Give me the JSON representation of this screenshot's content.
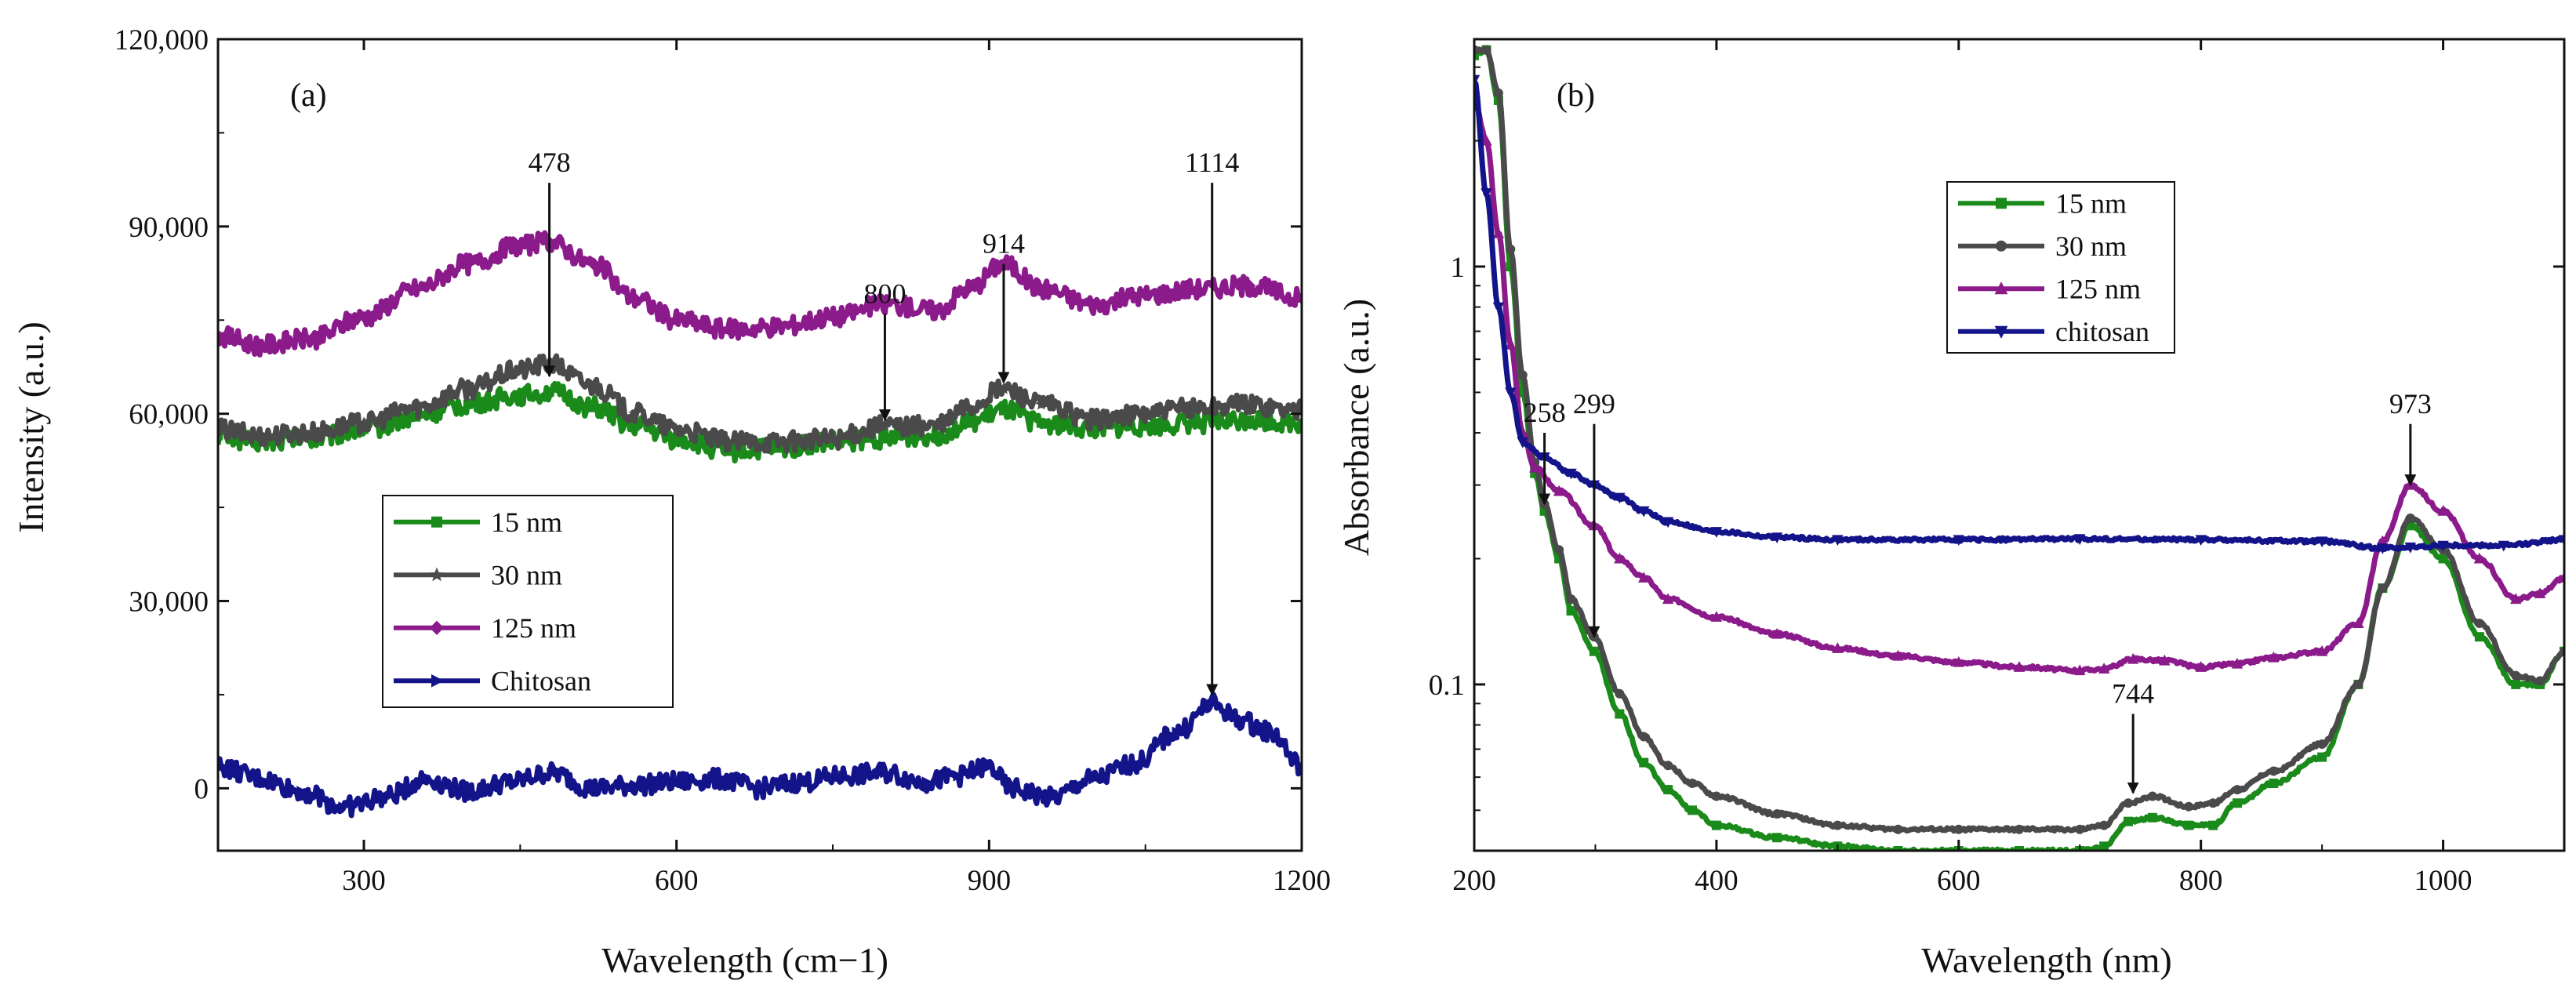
{
  "chart_data": [
    {
      "panel_label": "(a)",
      "type": "line",
      "xlabel": "Wavelength (cm−1)",
      "ylabel": "Intensity (a.u.)",
      "xlim": [
        160,
        1200
      ],
      "ylim": [
        -10000,
        120000
      ],
      "xticks": [
        300,
        600,
        900,
        1200
      ],
      "yticks": [
        0,
        30000,
        60000,
        90000,
        120000
      ],
      "ytick_labels": [
        "0",
        "30,000",
        "60,000",
        "90,000",
        "120,000"
      ],
      "legend_position": "lower-left",
      "series": [
        {
          "name": "15 nm",
          "color": "#1a8a1a",
          "marker": "square",
          "x": [
            160,
            200,
            250,
            300,
            350,
            400,
            450,
            478,
            520,
            560,
            600,
            650,
            700,
            750,
            800,
            850,
            880,
            914,
            950,
            1000,
            1050,
            1100,
            1150,
            1200
          ],
          "y": [
            56500,
            55500,
            56000,
            57500,
            59500,
            61500,
            63000,
            63500,
            61000,
            58000,
            56000,
            54000,
            54500,
            55500,
            56000,
            56500,
            58500,
            60500,
            58500,
            57500,
            58000,
            58500,
            59000,
            58500
          ]
        },
        {
          "name": "30 nm",
          "color": "#4a4a4a",
          "marker": "star",
          "x": [
            160,
            200,
            250,
            300,
            350,
            400,
            450,
            478,
            520,
            560,
            600,
            650,
            700,
            750,
            800,
            850,
            880,
            914,
            950,
            1000,
            1050,
            1100,
            1150,
            1200
          ],
          "y": [
            57500,
            56500,
            57000,
            58500,
            61000,
            64000,
            67000,
            68000,
            64500,
            60000,
            57500,
            55500,
            55500,
            56000,
            58000,
            58000,
            61000,
            64000,
            61500,
            59000,
            60000,
            61000,
            61500,
            60500
          ]
        },
        {
          "name": "125 nm",
          "color": "#8b1a8b",
          "marker": "diamond",
          "x": [
            160,
            200,
            250,
            300,
            350,
            400,
            450,
            478,
            520,
            560,
            600,
            650,
            700,
            750,
            800,
            850,
            880,
            914,
            950,
            1000,
            1050,
            1100,
            1150,
            1200
          ],
          "y": [
            72500,
            71000,
            72000,
            75500,
            80000,
            84000,
            87000,
            87500,
            84000,
            78500,
            75000,
            73500,
            74000,
            75500,
            77500,
            76500,
            80000,
            84000,
            80000,
            77500,
            79000,
            80000,
            80500,
            78500
          ]
        },
        {
          "name": "Chitosan",
          "color": "#14148a",
          "marker": "triangle-right",
          "x": [
            160,
            200,
            240,
            280,
            320,
            360,
            400,
            440,
            480,
            520,
            560,
            600,
            640,
            680,
            720,
            760,
            800,
            840,
            870,
            900,
            920,
            960,
            1000,
            1040,
            1080,
            1114,
            1140,
            1170,
            1200
          ],
          "y": [
            3500,
            1500,
            -500,
            -3000,
            -1500,
            1500,
            -500,
            1000,
            2500,
            0,
            500,
            1000,
            1500,
            0,
            1000,
            2000,
            2500,
            1000,
            2000,
            3500,
            0,
            -1500,
            1500,
            4000,
            9000,
            13500,
            11000,
            9000,
            3500
          ]
        }
      ],
      "annotations": [
        {
          "label": "478",
          "x": 478,
          "y_from": 97000,
          "y_to": 66000,
          "series": "30 nm"
        },
        {
          "label": "800",
          "x": 800,
          "y_from": 76000,
          "y_to": 59000,
          "series": "30 nm"
        },
        {
          "label": "914",
          "x": 914,
          "y_from": 84000,
          "y_to": 65000,
          "series": "30 nm"
        },
        {
          "label": "1114",
          "x": 1114,
          "y_from": 97000,
          "y_to": 15000,
          "series": "Chitosan"
        }
      ]
    },
    {
      "panel_label": "(b)",
      "type": "line",
      "yscale": "log",
      "xlabel": "Wavelength (nm)",
      "ylabel": "Absorbance (a.u.)",
      "xlim": [
        200,
        1100
      ],
      "ylim": [
        0.04,
        3.5
      ],
      "xticks": [
        200,
        400,
        600,
        800,
        1000
      ],
      "yticks": [
        0.1,
        1
      ],
      "ytick_labels": [
        "0.1",
        "1"
      ],
      "legend_position": "top-center",
      "series": [
        {
          "name": "15 nm",
          "color": "#1a8a1a",
          "marker": "square",
          "x": [
            200,
            210,
            220,
            230,
            240,
            250,
            258,
            270,
            280,
            299,
            320,
            340,
            360,
            380,
            400,
            450,
            500,
            550,
            600,
            650,
            700,
            720,
            740,
            760,
            790,
            810,
            830,
            860,
            900,
            930,
            950,
            973,
            1000,
            1030,
            1060,
            1080,
            1100
          ],
          "y": [
            3.2,
            3.3,
            2.5,
            1.0,
            0.5,
            0.32,
            0.26,
            0.2,
            0.15,
            0.12,
            0.085,
            0.065,
            0.056,
            0.05,
            0.046,
            0.043,
            0.041,
            0.04,
            0.04,
            0.04,
            0.04,
            0.041,
            0.047,
            0.048,
            0.046,
            0.046,
            0.052,
            0.058,
            0.067,
            0.1,
            0.17,
            0.24,
            0.2,
            0.13,
            0.1,
            0.1,
            0.12
          ]
        },
        {
          "name": "30 nm",
          "color": "#4a4a4a",
          "marker": "circle",
          "x": [
            200,
            210,
            220,
            230,
            240,
            250,
            258,
            270,
            280,
            299,
            320,
            340,
            360,
            380,
            400,
            450,
            500,
            550,
            600,
            650,
            700,
            720,
            740,
            760,
            790,
            810,
            830,
            860,
            900,
            930,
            950,
            973,
            1000,
            1030,
            1060,
            1080,
            1100
          ],
          "y": [
            3.3,
            3.3,
            2.6,
            1.1,
            0.55,
            0.34,
            0.27,
            0.21,
            0.16,
            0.13,
            0.095,
            0.075,
            0.064,
            0.058,
            0.054,
            0.049,
            0.046,
            0.045,
            0.045,
            0.045,
            0.045,
            0.046,
            0.052,
            0.054,
            0.051,
            0.052,
            0.056,
            0.062,
            0.072,
            0.1,
            0.17,
            0.25,
            0.21,
            0.14,
            0.105,
            0.102,
            0.12
          ]
        },
        {
          "name": "125 nm",
          "color": "#8b1a8b",
          "marker": "triangle-up",
          "x": [
            200,
            210,
            220,
            230,
            240,
            250,
            270,
            299,
            320,
            340,
            360,
            400,
            450,
            500,
            550,
            600,
            650,
            700,
            720,
            744,
            770,
            800,
            830,
            860,
            900,
            930,
            950,
            973,
            1000,
            1030,
            1060,
            1080,
            1100
          ],
          "y": [
            2.5,
            2.0,
            1.2,
            0.65,
            0.4,
            0.33,
            0.29,
            0.24,
            0.2,
            0.18,
            0.16,
            0.145,
            0.132,
            0.122,
            0.117,
            0.113,
            0.11,
            0.108,
            0.109,
            0.115,
            0.114,
            0.11,
            0.112,
            0.116,
            0.12,
            0.14,
            0.22,
            0.3,
            0.26,
            0.2,
            0.16,
            0.165,
            0.18
          ]
        },
        {
          "name": "chitosan",
          "color": "#14148a",
          "marker": "triangle-down",
          "x": [
            200,
            210,
            220,
            230,
            240,
            258,
            280,
            299,
            320,
            340,
            360,
            400,
            450,
            500,
            600,
            700,
            800,
            900,
            950,
            973,
            1000,
            1050,
            1100
          ],
          "y": [
            2.8,
            1.5,
            0.8,
            0.5,
            0.38,
            0.35,
            0.32,
            0.3,
            0.28,
            0.26,
            0.245,
            0.232,
            0.225,
            0.222,
            0.222,
            0.223,
            0.222,
            0.22,
            0.212,
            0.213,
            0.215,
            0.215,
            0.222
          ]
        }
      ],
      "annotations": [
        {
          "label": "258",
          "x": 258,
          "y_from": 0.4,
          "y_to": 0.27,
          "series": "30 nm"
        },
        {
          "label": "299",
          "x": 299,
          "y_from": 0.42,
          "y_to": 0.13,
          "series": "30 nm"
        },
        {
          "label": "744",
          "x": 744,
          "y_from": 0.085,
          "y_to": 0.055,
          "series": "30 nm"
        },
        {
          "label": "973",
          "x": 973,
          "y_from": 0.42,
          "y_to": 0.3,
          "series": "125 nm"
        }
      ]
    }
  ]
}
